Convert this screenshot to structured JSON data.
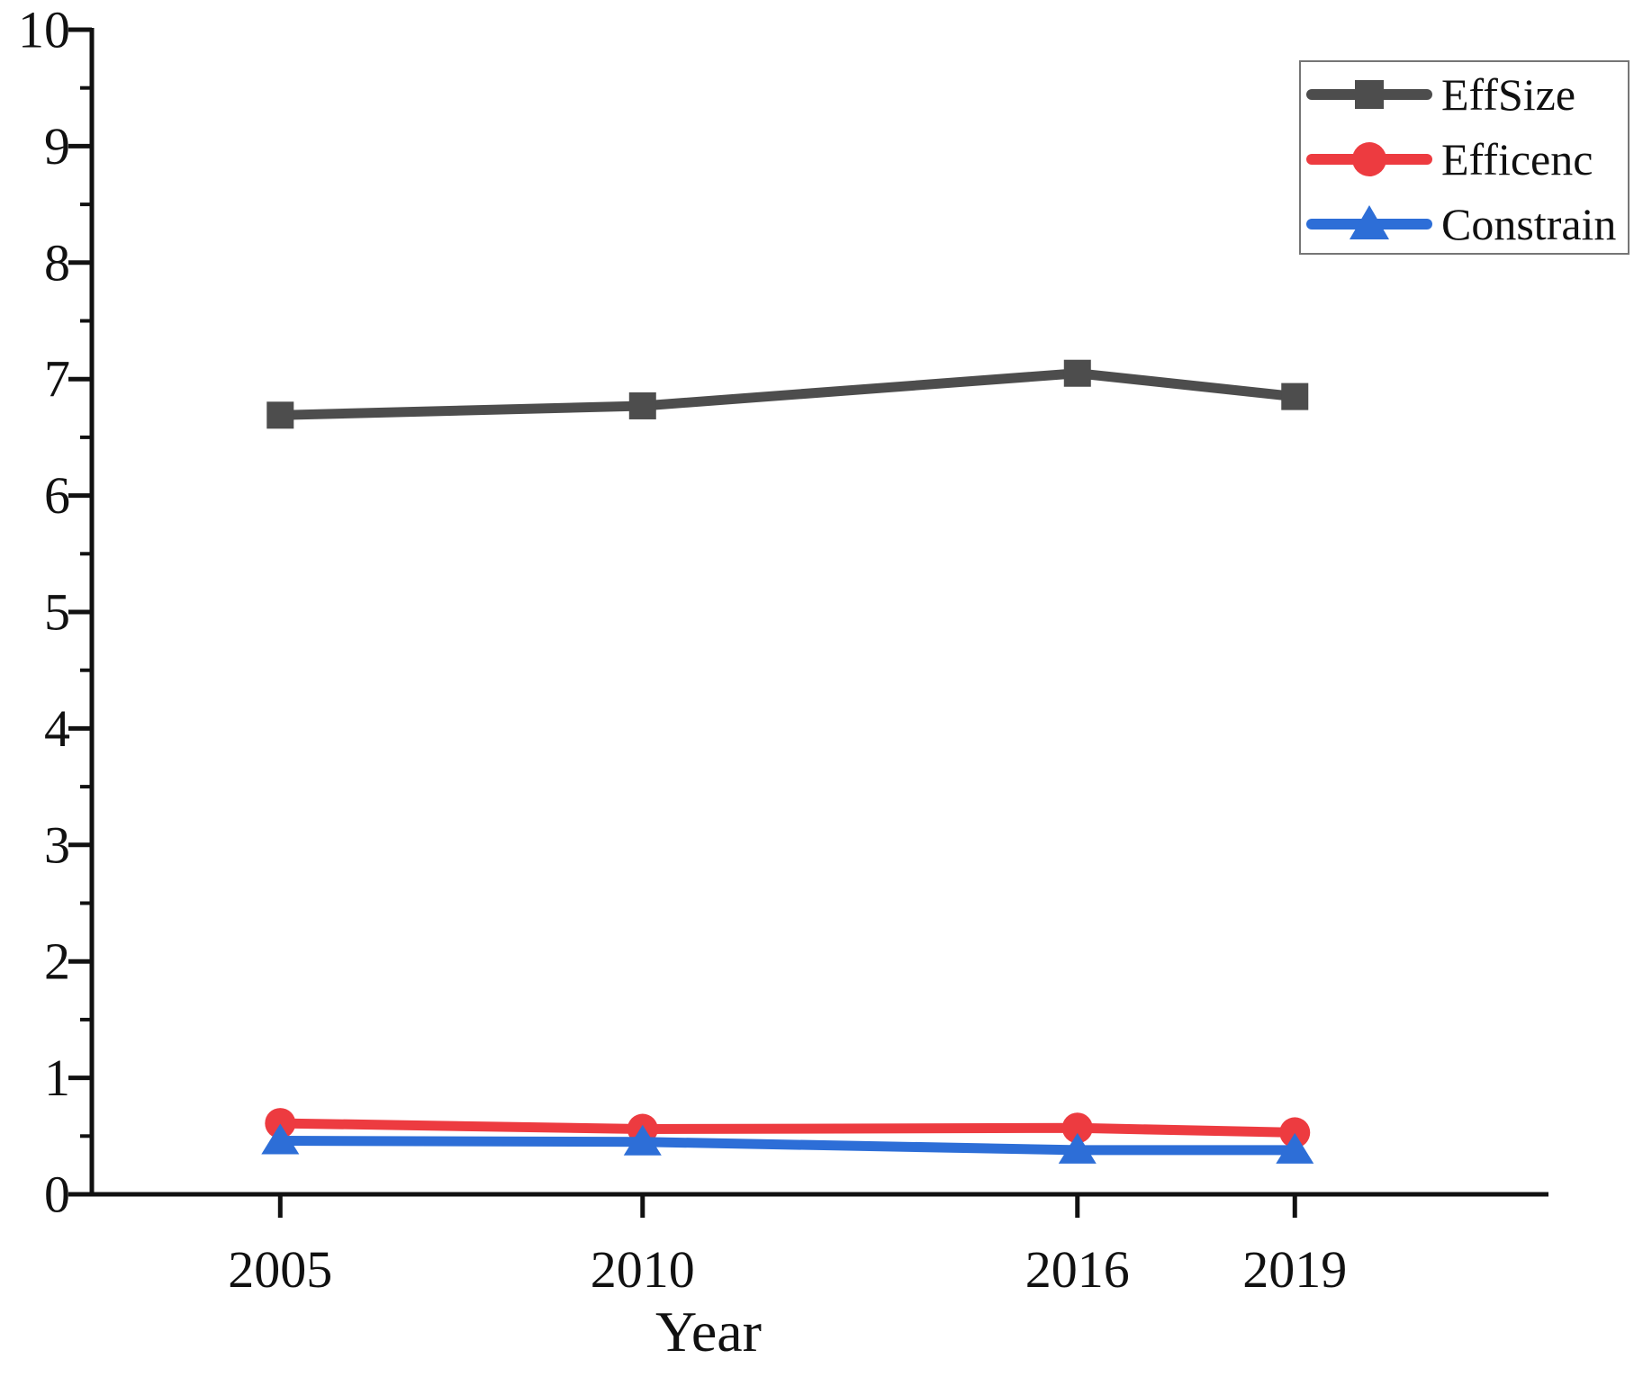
{
  "page": {
    "background": "#FFFFFF"
  },
  "chart_data": {
    "type": "line",
    "title": "",
    "xlabel": "Year",
    "ylabel": "",
    "x": [
      2005,
      2010,
      2016,
      2019
    ],
    "x_tick_labels": [
      "2005",
      "2010",
      "2016",
      "2019"
    ],
    "y_tick_labels": [
      "0",
      "1",
      "2",
      "3",
      "4",
      "5",
      "6",
      "7",
      "8",
      "9",
      "10"
    ],
    "y_major_ticks": [
      0,
      1,
      2,
      3,
      4,
      5,
      6,
      7,
      8,
      9,
      10
    ],
    "y_minor_tick_step": 0.5,
    "ylim": [
      0,
      10
    ],
    "xlim": [
      2002.4,
      2022.5
    ],
    "grid": false,
    "legend_position": "top-right",
    "axis_color": "#111111",
    "legend_border_color": "#767676",
    "series": [
      {
        "name": "EffSize",
        "marker": "square",
        "color": "#4D4D4D",
        "values": [
          6.69,
          6.77,
          7.05,
          6.85
        ]
      },
      {
        "name": "Efficenc",
        "marker": "circle",
        "color": "#ED3B40",
        "values": [
          0.61,
          0.56,
          0.57,
          0.53
        ]
      },
      {
        "name": "Constrain",
        "marker": "triangle",
        "color": "#2D6ED7",
        "values": [
          0.46,
          0.45,
          0.38,
          0.38
        ]
      }
    ]
  }
}
